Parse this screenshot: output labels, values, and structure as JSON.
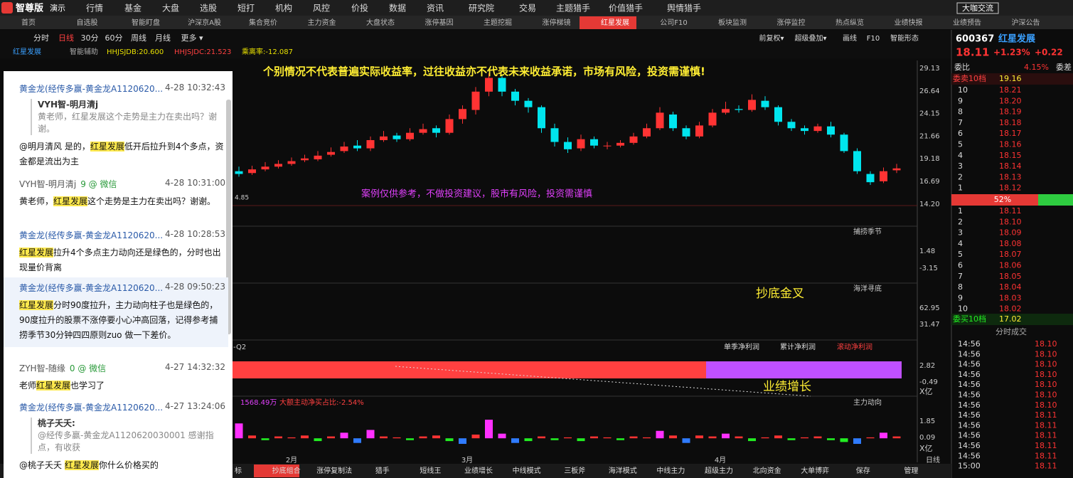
{
  "top_menu": {
    "logo": "智尊版",
    "badge": "演示",
    "items": [
      "行情",
      "基金",
      "大盘",
      "选股",
      "短打",
      "机构",
      "风控",
      "价投",
      "数据",
      "资讯",
      "研究院",
      "交易",
      "主题猎手",
      "价值猎手",
      "舆情猎手"
    ],
    "right": "大咖交流"
  },
  "tabs": [
    "首页",
    "自选股",
    "智能盯盘",
    "沪深京A股",
    "集合竞价",
    "主力资金",
    "大盘状态",
    "涨停基因",
    "主题挖掘",
    "涨停梯镜",
    "红星发展",
    "公司F10",
    "板块监测",
    "涨停监控",
    "热点纵览",
    "业绩快报",
    "业绩预告",
    "沪深公告"
  ],
  "toolbar": {
    "periods": [
      "分时",
      "日线",
      "30分",
      "60分",
      "周线",
      "月线",
      "更多 ▾"
    ],
    "tools": [
      "前复权▾",
      "超级叠加▾",
      "画线",
      "F10",
      "智能形态"
    ]
  },
  "indicator": {
    "name": "红星发展",
    "assist": "智能辅助",
    "lines": [
      "HHJSJDB:20.600",
      "HHJSJDC:21.523",
      "乘离率:-12.087"
    ]
  },
  "chart": {
    "disclaimer_top": "个别情况不代表普遍实际收益率，过往收益亦不代表未来收益承诺，市场有风险，投资需谨慎!",
    "disclaimer_mid": "案例仅供参考，不做投资建议，股市有风险，投资需谨慎",
    "low_label": "4.85",
    "price_ticks": [
      29.13,
      26.64,
      24.15,
      21.66,
      19.18,
      16.69,
      {
        "value": 14.2,
        "label": "14.20"
      }
    ],
    "candles": [
      [
        17.8,
        17.5,
        18.3,
        17.2
      ],
      [
        17.6,
        18.0,
        18.4,
        17.4
      ],
      [
        18.0,
        18.3,
        18.8,
        17.8
      ],
      [
        18.3,
        18.6,
        19.0,
        18.1
      ],
      [
        18.6,
        18.9,
        19.3,
        18.4
      ],
      [
        19.0,
        19.2,
        19.6,
        18.8
      ],
      [
        19.1,
        19.5,
        20.0,
        18.9
      ],
      [
        19.6,
        19.9,
        20.4,
        19.4
      ],
      [
        20.0,
        20.5,
        21.0,
        19.8
      ],
      [
        20.6,
        20.3,
        21.2,
        20.0
      ],
      [
        20.3,
        21.2,
        21.6,
        20.0
      ],
      [
        21.2,
        21.6,
        22.2,
        21.0
      ],
      [
        21.7,
        21.3,
        22.0,
        21.0
      ],
      [
        21.3,
        22.0,
        22.5,
        21.1
      ],
      [
        22.0,
        22.4,
        23.0,
        21.8
      ],
      [
        22.5,
        22.0,
        22.8,
        21.5
      ],
      [
        22.0,
        23.5,
        24.0,
        21.8
      ],
      [
        23.5,
        24.6,
        25.0,
        23.0
      ],
      [
        24.5,
        26.5,
        27.0,
        24.0
      ],
      [
        26.5,
        28.0,
        28.5,
        26.0
      ],
      [
        28.0,
        26.5,
        28.3,
        26.0
      ],
      [
        26.5,
        25.5,
        26.8,
        25.0
      ],
      [
        25.5,
        24.8,
        25.8,
        24.2
      ],
      [
        24.8,
        22.5,
        25.0,
        22.0
      ],
      [
        22.5,
        21.0,
        23.0,
        20.5
      ],
      [
        21.0,
        20.2,
        21.5,
        19.8
      ],
      [
        20.3,
        21.3,
        21.8,
        20.0
      ],
      [
        21.3,
        20.6,
        21.6,
        20.3
      ],
      [
        20.6,
        20.6,
        21.0,
        20.2
      ],
      [
        20.6,
        20.9,
        21.2,
        20.4
      ],
      [
        20.9,
        21.6,
        22.0,
        20.7
      ],
      [
        21.6,
        22.5,
        23.0,
        21.4
      ],
      [
        22.5,
        24.2,
        24.8,
        22.3
      ],
      [
        24.0,
        22.5,
        24.3,
        22.2
      ],
      [
        22.5,
        21.6,
        22.8,
        21.3
      ],
      [
        21.6,
        22.8,
        23.2,
        21.4
      ],
      [
        22.8,
        24.2,
        24.6,
        22.6
      ],
      [
        24.2,
        24.6,
        25.4,
        24.0
      ],
      [
        24.6,
        24.5,
        25.0,
        24.2
      ],
      [
        24.5,
        25.6,
        26.2,
        24.3
      ],
      [
        25.5,
        24.8,
        26.0,
        24.5
      ],
      [
        24.8,
        23.2,
        25.0,
        22.8
      ],
      [
        23.2,
        22.5,
        23.5,
        22.2
      ],
      [
        22.5,
        22.2,
        22.8,
        21.8
      ],
      [
        22.2,
        22.7,
        23.0,
        22.0
      ],
      [
        22.7,
        21.8,
        23.2,
        21.5
      ],
      [
        21.8,
        20.0,
        22.0,
        19.8
      ],
      [
        20.0,
        17.8,
        20.3,
        17.5
      ],
      [
        17.5,
        16.6,
        17.8,
        16.3
      ],
      [
        16.7,
        17.8,
        18.2,
        16.5
      ],
      [
        17.9,
        18.11,
        18.6,
        17.6
      ]
    ],
    "panels": [
      {
        "name": "捕捞季节",
        "ticks": [
          1.48,
          -3.15
        ]
      },
      {
        "name": "海洋寻底",
        "ticks": [
          62.95,
          31.47
        ],
        "annotation": "抄底金叉"
      },
      {
        "quarter": "-Q2",
        "legend": [
          "单季净利润",
          "累计净利润",
          "滚动净利润"
        ],
        "ticks": [
          2.82,
          -0.49
        ],
        "unit": "X亿",
        "annotation": "业绩增长"
      },
      {
        "name": "主力动向",
        "info": [
          "1568.49万",
          "大额主动净买占比:-2.54%"
        ],
        "ticks": [
          1.85,
          0.09
        ],
        "unit": "X亿",
        "values": [
          1.6,
          0.3,
          -0.2,
          0.2,
          0.1,
          0.3,
          -0.3,
          0.2,
          0.6,
          -0.5,
          0.9,
          0.2,
          0.1,
          -0.2,
          0.2,
          0.3,
          -0.3,
          -0.6,
          0.4,
          2.0,
          0.5,
          -0.5,
          -0.3,
          0.2,
          -0.2,
          0.1,
          -0.3,
          0.2,
          0.1,
          -0.2,
          0.2,
          0.1,
          0.8,
          0.3,
          -0.5,
          0.3,
          0.2,
          0.5,
          0.2,
          -0.3,
          0.1,
          0.3,
          -0.2,
          0.1,
          0.2,
          -0.2,
          -0.4,
          -0.6,
          0.1,
          0.6,
          0.2
        ]
      }
    ],
    "months": [
      "2月",
      "3月",
      "4月"
    ],
    "period_label": "日线"
  },
  "bottom_tabs": [
    "标",
    "抄底组合",
    "涨停复制法",
    "猎手",
    "短线王",
    "业绩增长",
    "中线模式",
    "三板斧",
    "海洋模式",
    "中线主力",
    "超级主力",
    "北向资金",
    "大单博弈",
    "保存",
    "管理"
  ],
  "chat": [
    {
      "author": "黄金龙(经传多赢-黄金龙A1120620...",
      "time": "4-28 10:32:43",
      "quote": {
        "name": "VYH智-明月清j",
        "text": "黄老师，红星发展这个走势是主力在卖出吗？谢谢。"
      },
      "body": [
        {
          "t": "@明月清风  是的，",
          "hl": false
        },
        {
          "t": "红星发展",
          "hl": true
        },
        {
          "t": "低开后拉升到4个多点，资金都是流出为主",
          "hl": false
        }
      ]
    },
    {
      "author": "VYH智-明月清j",
      "via": "9 @ 微信",
      "time": "4-28 10:31:00",
      "body": [
        {
          "t": "黄老师，",
          "hl": false
        },
        {
          "t": "红星发展",
          "hl": true
        },
        {
          "t": "这个走势是主力在卖出吗？谢谢。",
          "hl": false
        }
      ]
    },
    {
      "author": "黄金龙(经传多赢-黄金龙A1120620...",
      "time": "4-28 10:28:53",
      "body": [
        {
          "t": "红星发展",
          "hl": true
        },
        {
          "t": "拉升4个多点主力动向还是绿色的，分时也出现量价背离",
          "hl": false
        }
      ]
    },
    {
      "author": "黄金龙(经传多赢-黄金龙A1120620...",
      "time": "4-28 09:50:23",
      "body": [
        {
          "t": "红星发展",
          "hl": true
        },
        {
          "t": "分时90度拉升，主力动向柱子也是绿色的，90度拉升的股票不涨停要小心冲高回落，记得参考捕捞季节30分钟四四原则zuo 做一下差价。",
          "hl": false
        }
      ]
    },
    {
      "author": "ZYH智-随缘",
      "via": "0 @ 微信",
      "time": "4-27 14:32:32",
      "body": [
        {
          "t": "老师",
          "hl": false
        },
        {
          "t": "红星发展",
          "hl": true
        },
        {
          "t": "也学习了",
          "hl": false
        }
      ]
    },
    {
      "author": "黄金龙(经传多赢-黄金龙A1120620...",
      "time": "4-27 13:24:06",
      "quote": {
        "name": "桃子夭夭:",
        "text": "@经传多赢-黄金龙A1120620030001 感谢指点，有收获"
      },
      "body": [
        {
          "t": "@桃子夭夭  ",
          "hl": false
        },
        {
          "t": "红星发展",
          "hl": true
        },
        {
          "t": "你什么价格买的",
          "hl": false
        }
      ]
    }
  ],
  "quote": {
    "code": "600367",
    "name": "红星发展",
    "price": "18.11",
    "pct": "+1.23%",
    "chg": "+0.22",
    "wb_label": "委比",
    "wb": "4.15%",
    "wc_label": "委差",
    "ask_label": "委卖10档",
    "ask_total": "19.16",
    "asks": [
      [
        "10",
        "18.21"
      ],
      [
        "9",
        "18.20"
      ],
      [
        "8",
        "18.19"
      ],
      [
        "7",
        "18.18"
      ],
      [
        "6",
        "18.17"
      ],
      [
        "5",
        "18.16"
      ],
      [
        "4",
        "18.15"
      ],
      [
        "3",
        "18.14"
      ],
      [
        "2",
        "18.13"
      ],
      [
        "1",
        "18.12"
      ]
    ],
    "ratio": "52%",
    "bids": [
      [
        "1",
        "18.11"
      ],
      [
        "2",
        "18.10"
      ],
      [
        "3",
        "18.09"
      ],
      [
        "4",
        "18.08"
      ],
      [
        "5",
        "18.07"
      ],
      [
        "6",
        "18.06"
      ],
      [
        "7",
        "18.05"
      ],
      [
        "8",
        "18.04"
      ],
      [
        "9",
        "18.03"
      ],
      [
        "10",
        "18.02"
      ]
    ],
    "bid_label": "委买10档",
    "bid_total": "17.02",
    "trades_label": "分时成交",
    "trades": [
      [
        "14:56",
        "18.10"
      ],
      [
        "14:56",
        "18.10"
      ],
      [
        "14:56",
        "18.10"
      ],
      [
        "14:56",
        "18.10"
      ],
      [
        "14:56",
        "18.10"
      ],
      [
        "14:56",
        "18.10"
      ],
      [
        "14:56",
        "18.10"
      ],
      [
        "14:56",
        "18.11"
      ],
      [
        "14:56",
        "18.11"
      ],
      [
        "14:56",
        "18.11"
      ],
      [
        "14:56",
        "18.11"
      ],
      [
        "14:56",
        "18.11"
      ],
      [
        "15:00",
        "18.11"
      ]
    ]
  }
}
